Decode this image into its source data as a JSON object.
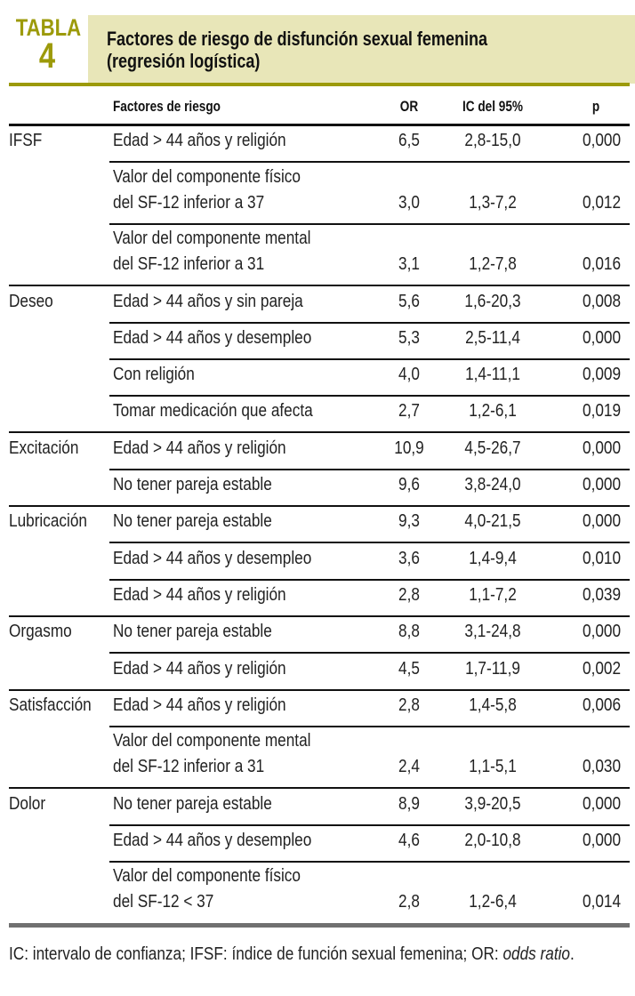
{
  "header": {
    "tabla_label": "TABLA",
    "tabla_number": "4",
    "title_line1": "Factores de riesgo de disfunción sexual femenina",
    "title_line2": "(regresión logística)"
  },
  "columns": {
    "factor": "Factores de riesgo",
    "or": "OR",
    "ic": "IC del 95%",
    "p": "p"
  },
  "rows": [
    {
      "group": "IFSF",
      "factor": [
        "Edad > 44 años y religión"
      ],
      "or": "6,5",
      "ic": "2,8-15,0",
      "p": "0,000"
    },
    {
      "group": "",
      "factor": [
        "Valor del componente físico",
        "del SF-12 inferior a 37"
      ],
      "or": "3,0",
      "ic": "1,3-7,2",
      "p": "0,012"
    },
    {
      "group": "",
      "factor": [
        "Valor del componente mental",
        "del SF-12 inferior a 31"
      ],
      "or": "3,1",
      "ic": "1,2-7,8",
      "p": "0,016"
    },
    {
      "group": "Deseo",
      "factor": [
        "Edad > 44 años y sin pareja"
      ],
      "or": "5,6",
      "ic": "1,6-20,3",
      "p": "0,008"
    },
    {
      "group": "",
      "factor": [
        "Edad > 44 años y desempleo"
      ],
      "or": "5,3",
      "ic": "2,5-11,4",
      "p": "0,000"
    },
    {
      "group": "",
      "factor": [
        "Con religión"
      ],
      "or": "4,0",
      "ic": "1,4-11,1",
      "p": "0,009"
    },
    {
      "group": "",
      "factor": [
        "Tomar medicación que afecta"
      ],
      "or": "2,7",
      "ic": "1,2-6,1",
      "p": "0,019"
    },
    {
      "group": "Excitación",
      "factor": [
        "Edad > 44 años y religión"
      ],
      "or": "10,9",
      "ic": "4,5-26,7",
      "p": "0,000"
    },
    {
      "group": "",
      "factor": [
        "No tener pareja estable"
      ],
      "or": "9,6",
      "ic": "3,8-24,0",
      "p": "0,000"
    },
    {
      "group": "Lubricación",
      "factor": [
        "No tener pareja estable"
      ],
      "or": "9,3",
      "ic": "4,0-21,5",
      "p": "0,000"
    },
    {
      "group": "",
      "factor": [
        "Edad > 44 años y desempleo"
      ],
      "or": "3,6",
      "ic": "1,4-9,4",
      "p": "0,010"
    },
    {
      "group": "",
      "factor": [
        "Edad > 44 años y religión"
      ],
      "or": "2,8",
      "ic": "1,1-7,2",
      "p": "0,039"
    },
    {
      "group": "Orgasmo",
      "factor": [
        "No tener pareja estable"
      ],
      "or": "8,8",
      "ic": "3,1-24,8",
      "p": "0,000"
    },
    {
      "group": "",
      "factor": [
        "Edad > 44 años y religión"
      ],
      "or": "4,5",
      "ic": "1,7-11,9",
      "p": "0,002"
    },
    {
      "group": "Satisfacción",
      "factor": [
        "Edad > 44 años y religión"
      ],
      "or": "2,8",
      "ic": "1,4-5,8",
      "p": "0,006"
    },
    {
      "group": "",
      "factor": [
        "Valor del componente mental",
        "del SF-12 inferior a 31"
      ],
      "or": "2,4",
      "ic": "1,1-5,1",
      "p": "0,030"
    },
    {
      "group": "Dolor",
      "factor": [
        "No tener pareja estable"
      ],
      "or": "8,9",
      "ic": "3,9-20,5",
      "p": "0,000"
    },
    {
      "group": "",
      "factor": [
        "Edad > 44 años y desempleo"
      ],
      "or": "4,6",
      "ic": "2,0-10,8",
      "p": "0,000"
    },
    {
      "group": "",
      "factor": [
        "Valor del componente físico",
        "del SF-12 < 37"
      ],
      "or": "2,8",
      "ic": "1,2-6,4",
      "p": "0,014"
    }
  ],
  "footnote": {
    "text": "IC: intervalo de confianza; IFSF: índice de función sexual femenina; OR: ",
    "italic": "odds ratio",
    "end": "."
  },
  "colors": {
    "olive": "#9c9a0a",
    "title_bg": "#e8e6b8",
    "bottom_rule": "#707070"
  }
}
